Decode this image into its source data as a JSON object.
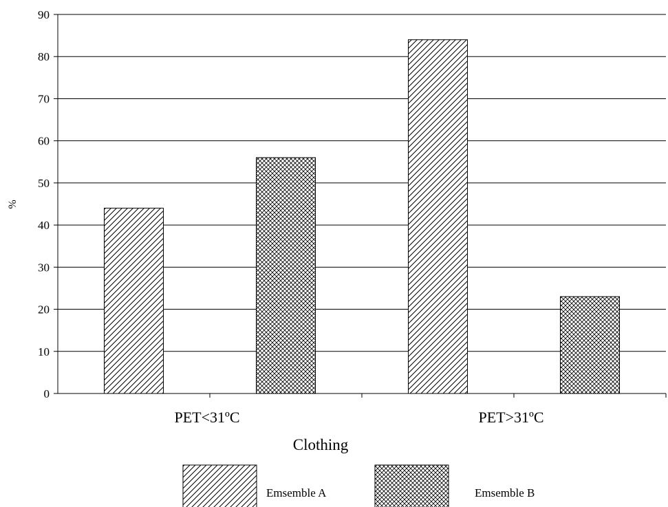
{
  "chart_data": {
    "type": "bar",
    "categories": [
      "PET<31ºC",
      "PET>31ºC"
    ],
    "series": [
      {
        "name": "Emsemble A",
        "values": [
          44,
          84
        ],
        "pattern": "diagonal-hatch"
      },
      {
        "name": "Emsemble B",
        "values": [
          56,
          23
        ],
        "pattern": "crosshatch"
      }
    ],
    "title": "",
    "xlabel": "Clothing",
    "ylabel": "%",
    "ylim": [
      0,
      90
    ],
    "yticks": [
      0,
      10,
      20,
      30,
      40,
      50,
      60,
      70,
      80,
      90
    ],
    "grid": true,
    "legend_position": "bottom"
  }
}
